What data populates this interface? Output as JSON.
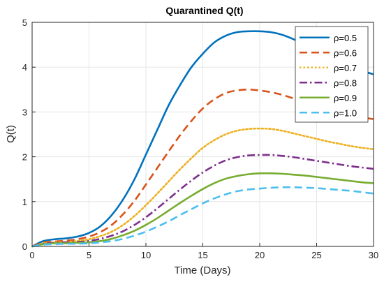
{
  "chart_data": {
    "type": "line",
    "title": "Quarantined Q(t)",
    "xlabel": "Time (Days)",
    "ylabel": "Q(t)",
    "xlim": [
      0,
      30
    ],
    "ylim": [
      0,
      5
    ],
    "xticks": [
      0,
      5,
      10,
      15,
      20,
      25,
      30
    ],
    "yticks": [
      0,
      1,
      2,
      3,
      4,
      5
    ],
    "grid": true,
    "legend_position": "top-right",
    "x": [
      0,
      1,
      2,
      3,
      4,
      5,
      6,
      7,
      8,
      9,
      10,
      11,
      12,
      13,
      14,
      15,
      16,
      17,
      18,
      19,
      20,
      21,
      22,
      23,
      24,
      25,
      26,
      27,
      28,
      29,
      30
    ],
    "series": [
      {
        "name": "ρ=0.5",
        "color": "#0072BD",
        "dash": "solid",
        "values": [
          0,
          0.12,
          0.16,
          0.18,
          0.22,
          0.3,
          0.45,
          0.7,
          1.05,
          1.5,
          2.05,
          2.6,
          3.15,
          3.6,
          4.0,
          4.3,
          4.55,
          4.7,
          4.78,
          4.8,
          4.8,
          4.78,
          4.72,
          4.62,
          4.5,
          4.38,
          4.25,
          4.14,
          4.02,
          3.92,
          3.84
        ]
      },
      {
        "name": "ρ=0.6",
        "color": "#D95319",
        "dash": "dashed",
        "values": [
          0,
          0.09,
          0.11,
          0.13,
          0.16,
          0.22,
          0.32,
          0.48,
          0.72,
          1.02,
          1.38,
          1.75,
          2.12,
          2.48,
          2.8,
          3.08,
          3.28,
          3.42,
          3.48,
          3.5,
          3.48,
          3.44,
          3.38,
          3.3,
          3.22,
          3.14,
          3.06,
          2.99,
          2.93,
          2.88,
          2.84
        ]
      },
      {
        "name": "ρ=0.7",
        "color": "#EDB120",
        "dash": "dotted",
        "values": [
          0,
          0.07,
          0.09,
          0.1,
          0.12,
          0.16,
          0.23,
          0.33,
          0.48,
          0.68,
          0.92,
          1.18,
          1.45,
          1.72,
          1.97,
          2.2,
          2.37,
          2.5,
          2.58,
          2.62,
          2.63,
          2.62,
          2.58,
          2.52,
          2.46,
          2.4,
          2.34,
          2.29,
          2.24,
          2.2,
          2.17
        ]
      },
      {
        "name": "ρ=0.8",
        "color": "#7E2F8E",
        "dash": "dashdot",
        "values": [
          0,
          0.06,
          0.08,
          0.09,
          0.1,
          0.12,
          0.17,
          0.24,
          0.34,
          0.48,
          0.65,
          0.85,
          1.06,
          1.27,
          1.47,
          1.65,
          1.8,
          1.92,
          1.99,
          2.03,
          2.04,
          2.04,
          2.02,
          1.99,
          1.95,
          1.91,
          1.87,
          1.83,
          1.79,
          1.76,
          1.73
        ]
      },
      {
        "name": "ρ=0.9",
        "color": "#77AC30",
        "dash": "solid",
        "values": [
          0,
          0.05,
          0.07,
          0.07,
          0.08,
          0.09,
          0.12,
          0.17,
          0.25,
          0.35,
          0.48,
          0.63,
          0.8,
          0.97,
          1.13,
          1.28,
          1.41,
          1.51,
          1.57,
          1.61,
          1.63,
          1.63,
          1.62,
          1.6,
          1.58,
          1.55,
          1.52,
          1.49,
          1.46,
          1.43,
          1.41
        ]
      },
      {
        "name": "ρ=1.0",
        "color": "#4DBEEE",
        "dash": "dashed",
        "values": [
          0,
          0.04,
          0.05,
          0.06,
          0.06,
          0.07,
          0.09,
          0.12,
          0.17,
          0.24,
          0.33,
          0.44,
          0.56,
          0.7,
          0.83,
          0.96,
          1.07,
          1.16,
          1.23,
          1.27,
          1.29,
          1.31,
          1.32,
          1.32,
          1.31,
          1.3,
          1.28,
          1.26,
          1.24,
          1.21,
          1.18
        ]
      }
    ]
  }
}
